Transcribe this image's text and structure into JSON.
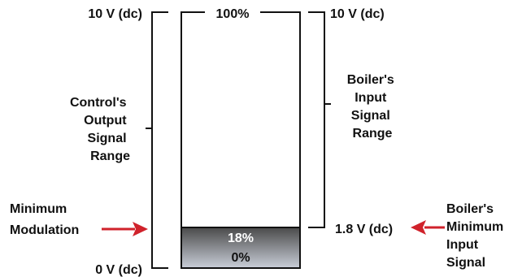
{
  "colors": {
    "line": "#111111",
    "arrow": "#d0222b",
    "fill_top": "#4a4a4a",
    "fill_bottom": "#c9ced8"
  },
  "left_scale": {
    "top_label": "10 V (dc)",
    "bottom_label": "0 V (dc)",
    "range_label": [
      "Control's",
      "Output",
      "Signal",
      "Range"
    ]
  },
  "right_scale": {
    "top_label": "10 V (dc)",
    "min_label": "1.8 V (dc)",
    "range_label": [
      "Boiler's",
      "Input",
      "Signal",
      "Range"
    ]
  },
  "bar": {
    "top_label": "100%",
    "min_label": "18%",
    "bottom_label": "0%",
    "min_fraction": 0.18
  },
  "left_callout": {
    "label": [
      "Minimum",
      "Modulation"
    ],
    "arrow_icon": "red-arrow-right-icon"
  },
  "right_callout": {
    "label": [
      "Boiler's",
      "Minimum",
      "Input",
      "Signal"
    ],
    "arrow_icon": "red-arrow-left-icon"
  }
}
